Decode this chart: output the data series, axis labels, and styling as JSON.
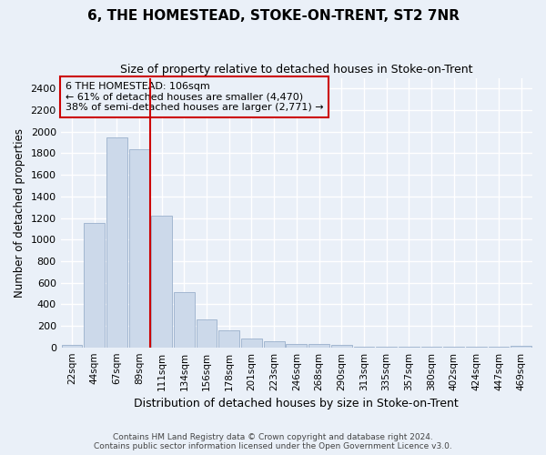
{
  "title": "6, THE HOMESTEAD, STOKE-ON-TRENT, ST2 7NR",
  "subtitle": "Size of property relative to detached houses in Stoke-on-Trent",
  "xlabel": "Distribution of detached houses by size in Stoke-on-Trent",
  "ylabel": "Number of detached properties",
  "bar_labels": [
    "22sqm",
    "44sqm",
    "67sqm",
    "89sqm",
    "111sqm",
    "134sqm",
    "156sqm",
    "178sqm",
    "201sqm",
    "223sqm",
    "246sqm",
    "268sqm",
    "290sqm",
    "313sqm",
    "335sqm",
    "357sqm",
    "380sqm",
    "402sqm",
    "424sqm",
    "447sqm",
    "469sqm"
  ],
  "bar_values": [
    25,
    1155,
    1950,
    1840,
    1220,
    510,
    260,
    155,
    80,
    55,
    35,
    35,
    20,
    5,
    5,
    5,
    5,
    5,
    5,
    5,
    15
  ],
  "bar_color": "#ccd9ea",
  "bar_edgecolor": "#9ab0cc",
  "property_line_label": "6 THE HOMESTEAD: 106sqm",
  "annotation_line1": "← 61% of detached houses are smaller (4,470)",
  "annotation_line2": "38% of semi-detached houses are larger (2,771) →",
  "vline_color": "#cc0000",
  "annotation_box_edgecolor": "#cc0000",
  "ylim": [
    0,
    2500
  ],
  "yticks": [
    0,
    200,
    400,
    600,
    800,
    1000,
    1200,
    1400,
    1600,
    1800,
    2000,
    2200,
    2400
  ],
  "footer_line1": "Contains HM Land Registry data © Crown copyright and database right 2024.",
  "footer_line2": "Contains public sector information licensed under the Open Government Licence v3.0.",
  "bg_color": "#eaf0f8",
  "grid_color": "#ffffff"
}
